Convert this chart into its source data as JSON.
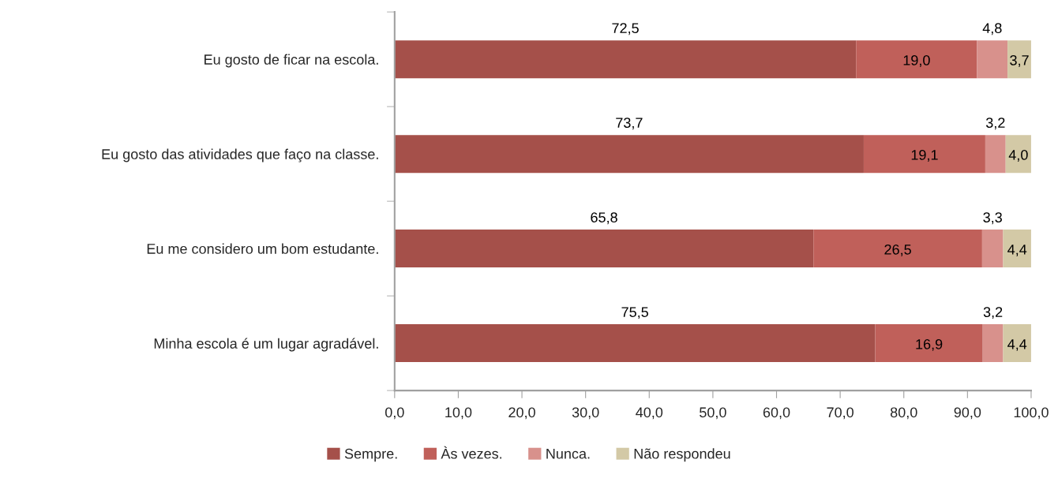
{
  "chart_data": {
    "type": "bar",
    "orientation": "horizontal",
    "stacked": true,
    "categories": [
      "Eu gosto de ficar na escola.",
      "Eu gosto das atividades que faço na classe.",
      "Eu me considero um bom estudante.",
      "Minha escola é um lugar agradável."
    ],
    "series": [
      {
        "name": "Sempre.",
        "color": "#a5504a",
        "values": [
          72.5,
          73.7,
          65.8,
          75.5
        ],
        "value_labels": [
          "72,5",
          "73,7",
          "65,8",
          "75,5"
        ]
      },
      {
        "name": "Às vezes.",
        "color": "#c0605a",
        "values": [
          19.0,
          19.1,
          26.5,
          16.9
        ],
        "value_labels": [
          "19,0",
          "19,1",
          "26,5",
          "16,9"
        ]
      },
      {
        "name": "Nunca.",
        "color": "#d8918c",
        "values": [
          4.8,
          3.2,
          3.3,
          3.2
        ],
        "value_labels": [
          "4,8",
          "3,2",
          "3,3",
          "3,2"
        ]
      },
      {
        "name": "Não respondeu",
        "color": "#d3c9a6",
        "values": [
          3.7,
          4.0,
          4.4,
          4.4
        ],
        "value_labels": [
          "3,7",
          "4,0",
          "4,4",
          "4,4"
        ]
      }
    ],
    "xlim": [
      0,
      100
    ],
    "xticks": [
      {
        "value": 0,
        "label": "0,0"
      },
      {
        "value": 10,
        "label": "10,0"
      },
      {
        "value": 20,
        "label": "20,0"
      },
      {
        "value": 30,
        "label": "30,0"
      },
      {
        "value": 40,
        "label": "40,0"
      },
      {
        "value": 50,
        "label": "50,0"
      },
      {
        "value": 60,
        "label": "60,0"
      },
      {
        "value": 70,
        "label": "70,0"
      },
      {
        "value": 80,
        "label": "80,0"
      },
      {
        "value": 90,
        "label": "90,0"
      },
      {
        "value": 100,
        "label": "100,0"
      }
    ],
    "legend": "bottom",
    "grid": false
  }
}
